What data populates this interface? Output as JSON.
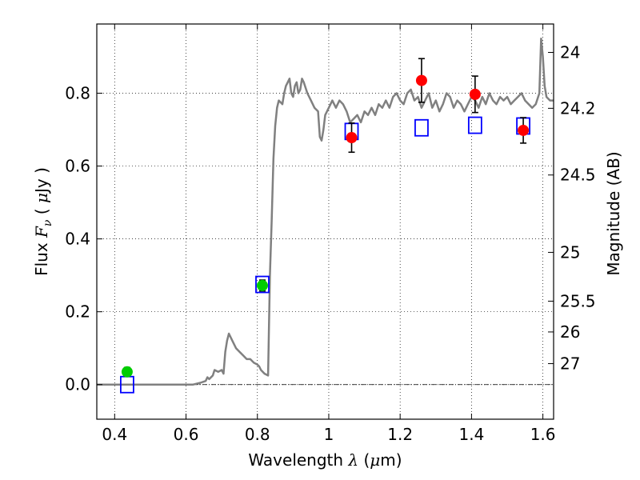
{
  "chart_data": {
    "type": "line",
    "title": "",
    "xlabel": {
      "prefix": "Wavelength  ",
      "symbol": "λ",
      "unit_open": " (",
      "unit_sym": "μ",
      "unit_rest": "m)"
    },
    "ylabel": {
      "prefix": "Flux  ",
      "symbol": "F",
      "subscript": "ν",
      "unit_open": "  ( ",
      "unit_sym": "μ",
      "unit_rest": "Jy )"
    },
    "ylabel_right": "Magnitude (AB)",
    "xlim": [
      0.35,
      1.63
    ],
    "ylim": [
      -0.095,
      0.99
    ],
    "grid": true,
    "x_ticks": [
      0.4,
      0.6,
      0.8,
      1.0,
      1.2,
      1.4,
      1.6
    ],
    "x_tick_labels": [
      "0.4",
      "0.6",
      "0.8",
      "1",
      "1.2",
      "1.4",
      "1.6"
    ],
    "y_ticks": [
      0.0,
      0.2,
      0.4,
      0.6,
      0.8
    ],
    "y_tick_labels": [
      "0.0",
      "0.2",
      "0.4",
      "0.6",
      "0.8"
    ],
    "right_ticks": [
      {
        "label": "24",
        "mag": 24.0
      },
      {
        "label": "24.2",
        "mag": 24.2
      },
      {
        "label": "24.5",
        "mag": 24.5
      },
      {
        "label": "25",
        "mag": 25.0
      },
      {
        "label": "25.5",
        "mag": 25.5
      },
      {
        "label": "26",
        "mag": 26.0
      },
      {
        "label": "27",
        "mag": 27.0
      }
    ],
    "zero_line": 0.0,
    "colors": {
      "sed": "#808080",
      "model_box": "#0000ff",
      "red_points": "#ff0000",
      "green_points": "#00cc00",
      "errorbar": "#000000"
    },
    "series": [
      {
        "kind": "sed",
        "x": [
          0.35,
          0.62,
          0.64,
          0.655,
          0.66,
          0.665,
          0.675,
          0.68,
          0.69,
          0.7,
          0.705,
          0.71,
          0.715,
          0.72,
          0.73,
          0.74,
          0.75,
          0.76,
          0.77,
          0.78,
          0.79,
          0.8,
          0.805,
          0.81,
          0.82,
          0.83,
          0.835,
          0.84,
          0.845,
          0.85,
          0.855,
          0.86,
          0.865,
          0.87,
          0.875,
          0.88,
          0.885,
          0.89,
          0.895,
          0.9,
          0.905,
          0.91,
          0.915,
          0.92,
          0.925,
          0.93,
          0.94,
          0.95,
          0.96,
          0.97,
          0.975,
          0.98,
          0.985,
          0.99,
          1.0,
          1.01,
          1.02,
          1.03,
          1.04,
          1.05,
          1.06,
          1.07,
          1.08,
          1.09,
          1.1,
          1.11,
          1.12,
          1.13,
          1.14,
          1.15,
          1.16,
          1.17,
          1.18,
          1.19,
          1.2,
          1.21,
          1.22,
          1.23,
          1.24,
          1.25,
          1.26,
          1.27,
          1.28,
          1.29,
          1.3,
          1.31,
          1.32,
          1.33,
          1.34,
          1.35,
          1.36,
          1.37,
          1.38,
          1.39,
          1.4,
          1.41,
          1.42,
          1.43,
          1.44,
          1.45,
          1.46,
          1.47,
          1.48,
          1.49,
          1.5,
          1.51,
          1.52,
          1.53,
          1.54,
          1.55,
          1.56,
          1.57,
          1.58,
          1.59,
          1.595,
          1.6,
          1.605,
          1.61,
          1.62,
          1.63
        ],
        "y": [
          0.0,
          0.0,
          0.005,
          0.01,
          0.02,
          0.015,
          0.025,
          0.04,
          0.035,
          0.04,
          0.03,
          0.09,
          0.12,
          0.14,
          0.12,
          0.1,
          0.09,
          0.08,
          0.07,
          0.07,
          0.06,
          0.055,
          0.05,
          0.04,
          0.03,
          0.025,
          0.3,
          0.45,
          0.62,
          0.71,
          0.76,
          0.78,
          0.775,
          0.77,
          0.8,
          0.82,
          0.83,
          0.84,
          0.8,
          0.79,
          0.82,
          0.83,
          0.8,
          0.81,
          0.84,
          0.83,
          0.8,
          0.78,
          0.76,
          0.75,
          0.68,
          0.67,
          0.7,
          0.74,
          0.76,
          0.78,
          0.76,
          0.78,
          0.77,
          0.75,
          0.72,
          0.73,
          0.74,
          0.72,
          0.75,
          0.74,
          0.76,
          0.74,
          0.77,
          0.76,
          0.78,
          0.76,
          0.79,
          0.8,
          0.78,
          0.77,
          0.8,
          0.81,
          0.78,
          0.79,
          0.76,
          0.78,
          0.8,
          0.76,
          0.78,
          0.75,
          0.77,
          0.8,
          0.79,
          0.76,
          0.78,
          0.77,
          0.75,
          0.77,
          0.79,
          0.78,
          0.76,
          0.79,
          0.77,
          0.8,
          0.78,
          0.77,
          0.79,
          0.78,
          0.79,
          0.77,
          0.78,
          0.79,
          0.8,
          0.78,
          0.77,
          0.76,
          0.77,
          0.8,
          0.95,
          0.9,
          0.82,
          0.79,
          0.78,
          0.78
        ]
      },
      {
        "kind": "model_photometry",
        "marker": "open-square",
        "x": [
          0.435,
          0.814,
          1.064,
          1.26,
          1.41,
          1.545
        ],
        "y": [
          0.0,
          0.275,
          0.695,
          0.705,
          0.712,
          0.71
        ]
      },
      {
        "kind": "observed_detections",
        "marker": "green-circle",
        "x": [
          0.435,
          0.814
        ],
        "y": [
          0.035,
          0.272
        ],
        "err": [
          0.012,
          0.015
        ]
      },
      {
        "kind": "observed_upper_bands",
        "marker": "red-circle",
        "x": [
          1.064,
          1.26,
          1.41,
          1.545
        ],
        "y": [
          0.678,
          0.835,
          0.797,
          0.698
        ],
        "err": [
          0.04,
          0.06,
          0.05,
          0.035
        ]
      }
    ]
  }
}
